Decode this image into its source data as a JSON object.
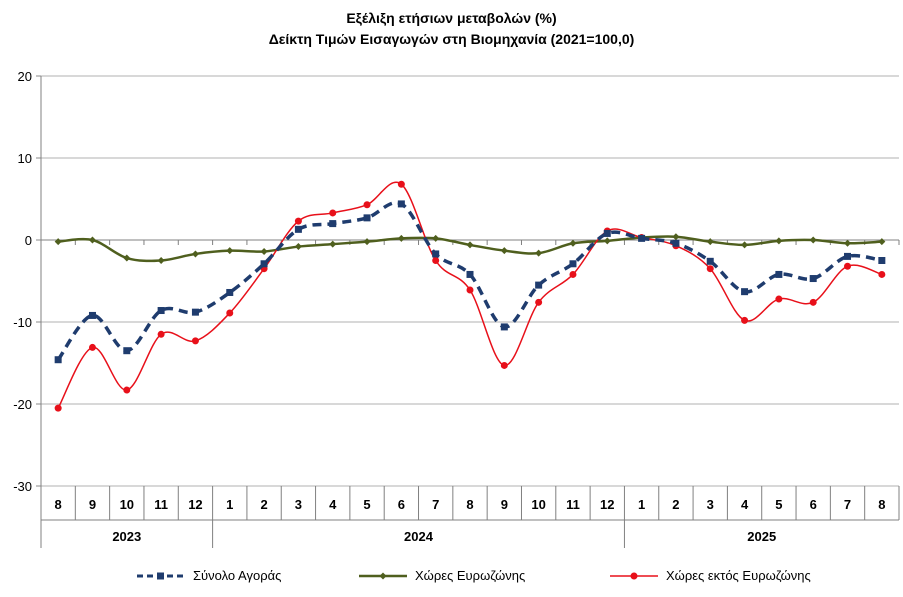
{
  "chart_data": {
    "type": "line",
    "title": "Εξέλιξη ετήσιων μεταβολών (%)",
    "subtitle": "Δείκτη Τιμών Εισαγωγών στη Βιομηχανία (2021=100,0)",
    "xlabel": "",
    "ylabel": "",
    "ylim": [
      -30,
      20
    ],
    "yticks": [
      20,
      10,
      0,
      -10,
      -20,
      -30
    ],
    "grid": true,
    "legend_position": "bottom",
    "categories": [
      "8",
      "9",
      "10",
      "11",
      "12",
      "1",
      "2",
      "3",
      "4",
      "5",
      "6",
      "7",
      "8",
      "9",
      "10",
      "11",
      "12",
      "1",
      "2",
      "3",
      "4",
      "5",
      "6",
      "7",
      "8"
    ],
    "year_groups": [
      {
        "label": "2023",
        "count": 5
      },
      {
        "label": "2024",
        "count": 12
      },
      {
        "label": "2025",
        "count": 8
      }
    ],
    "series": [
      {
        "name": "Σύνολο Αγοράς",
        "color": "#1f3c6e",
        "style": "dashed",
        "marker": "square",
        "values": [
          -14.6,
          -9.2,
          -13.5,
          -8.6,
          -8.8,
          -6.4,
          -2.9,
          1.3,
          2.0,
          2.7,
          4.4,
          -1.7,
          -4.2,
          -10.6,
          -5.5,
          -2.9,
          0.8,
          0.2,
          -0.4,
          -2.6,
          -6.3,
          -4.2,
          -4.7,
          -2.0,
          -2.5
        ]
      },
      {
        "name": "Χώρες Ευρωζώνης",
        "color": "#4f5f1e",
        "style": "solid",
        "marker": "diamond",
        "values": [
          -0.2,
          0.0,
          -2.2,
          -2.5,
          -1.7,
          -1.3,
          -1.4,
          -0.8,
          -0.5,
          -0.2,
          0.2,
          0.2,
          -0.6,
          -1.3,
          -1.6,
          -0.4,
          -0.1,
          0.3,
          0.4,
          -0.2,
          -0.6,
          -0.1,
          0.0,
          -0.4,
          -0.2
        ]
      },
      {
        "name": "Χώρες εκτός Ευρωζώνης",
        "color": "#e8101a",
        "style": "solid",
        "marker": "circle",
        "values": [
          -20.5,
          -13.1,
          -18.3,
          -11.5,
          -12.3,
          -8.9,
          -3.5,
          2.3,
          3.3,
          4.3,
          6.8,
          -2.5,
          -6.1,
          -15.3,
          -7.6,
          -4.2,
          1.1,
          0.3,
          -0.7,
          -3.5,
          -9.8,
          -7.2,
          -7.6,
          -3.2,
          -4.2
        ]
      }
    ]
  }
}
